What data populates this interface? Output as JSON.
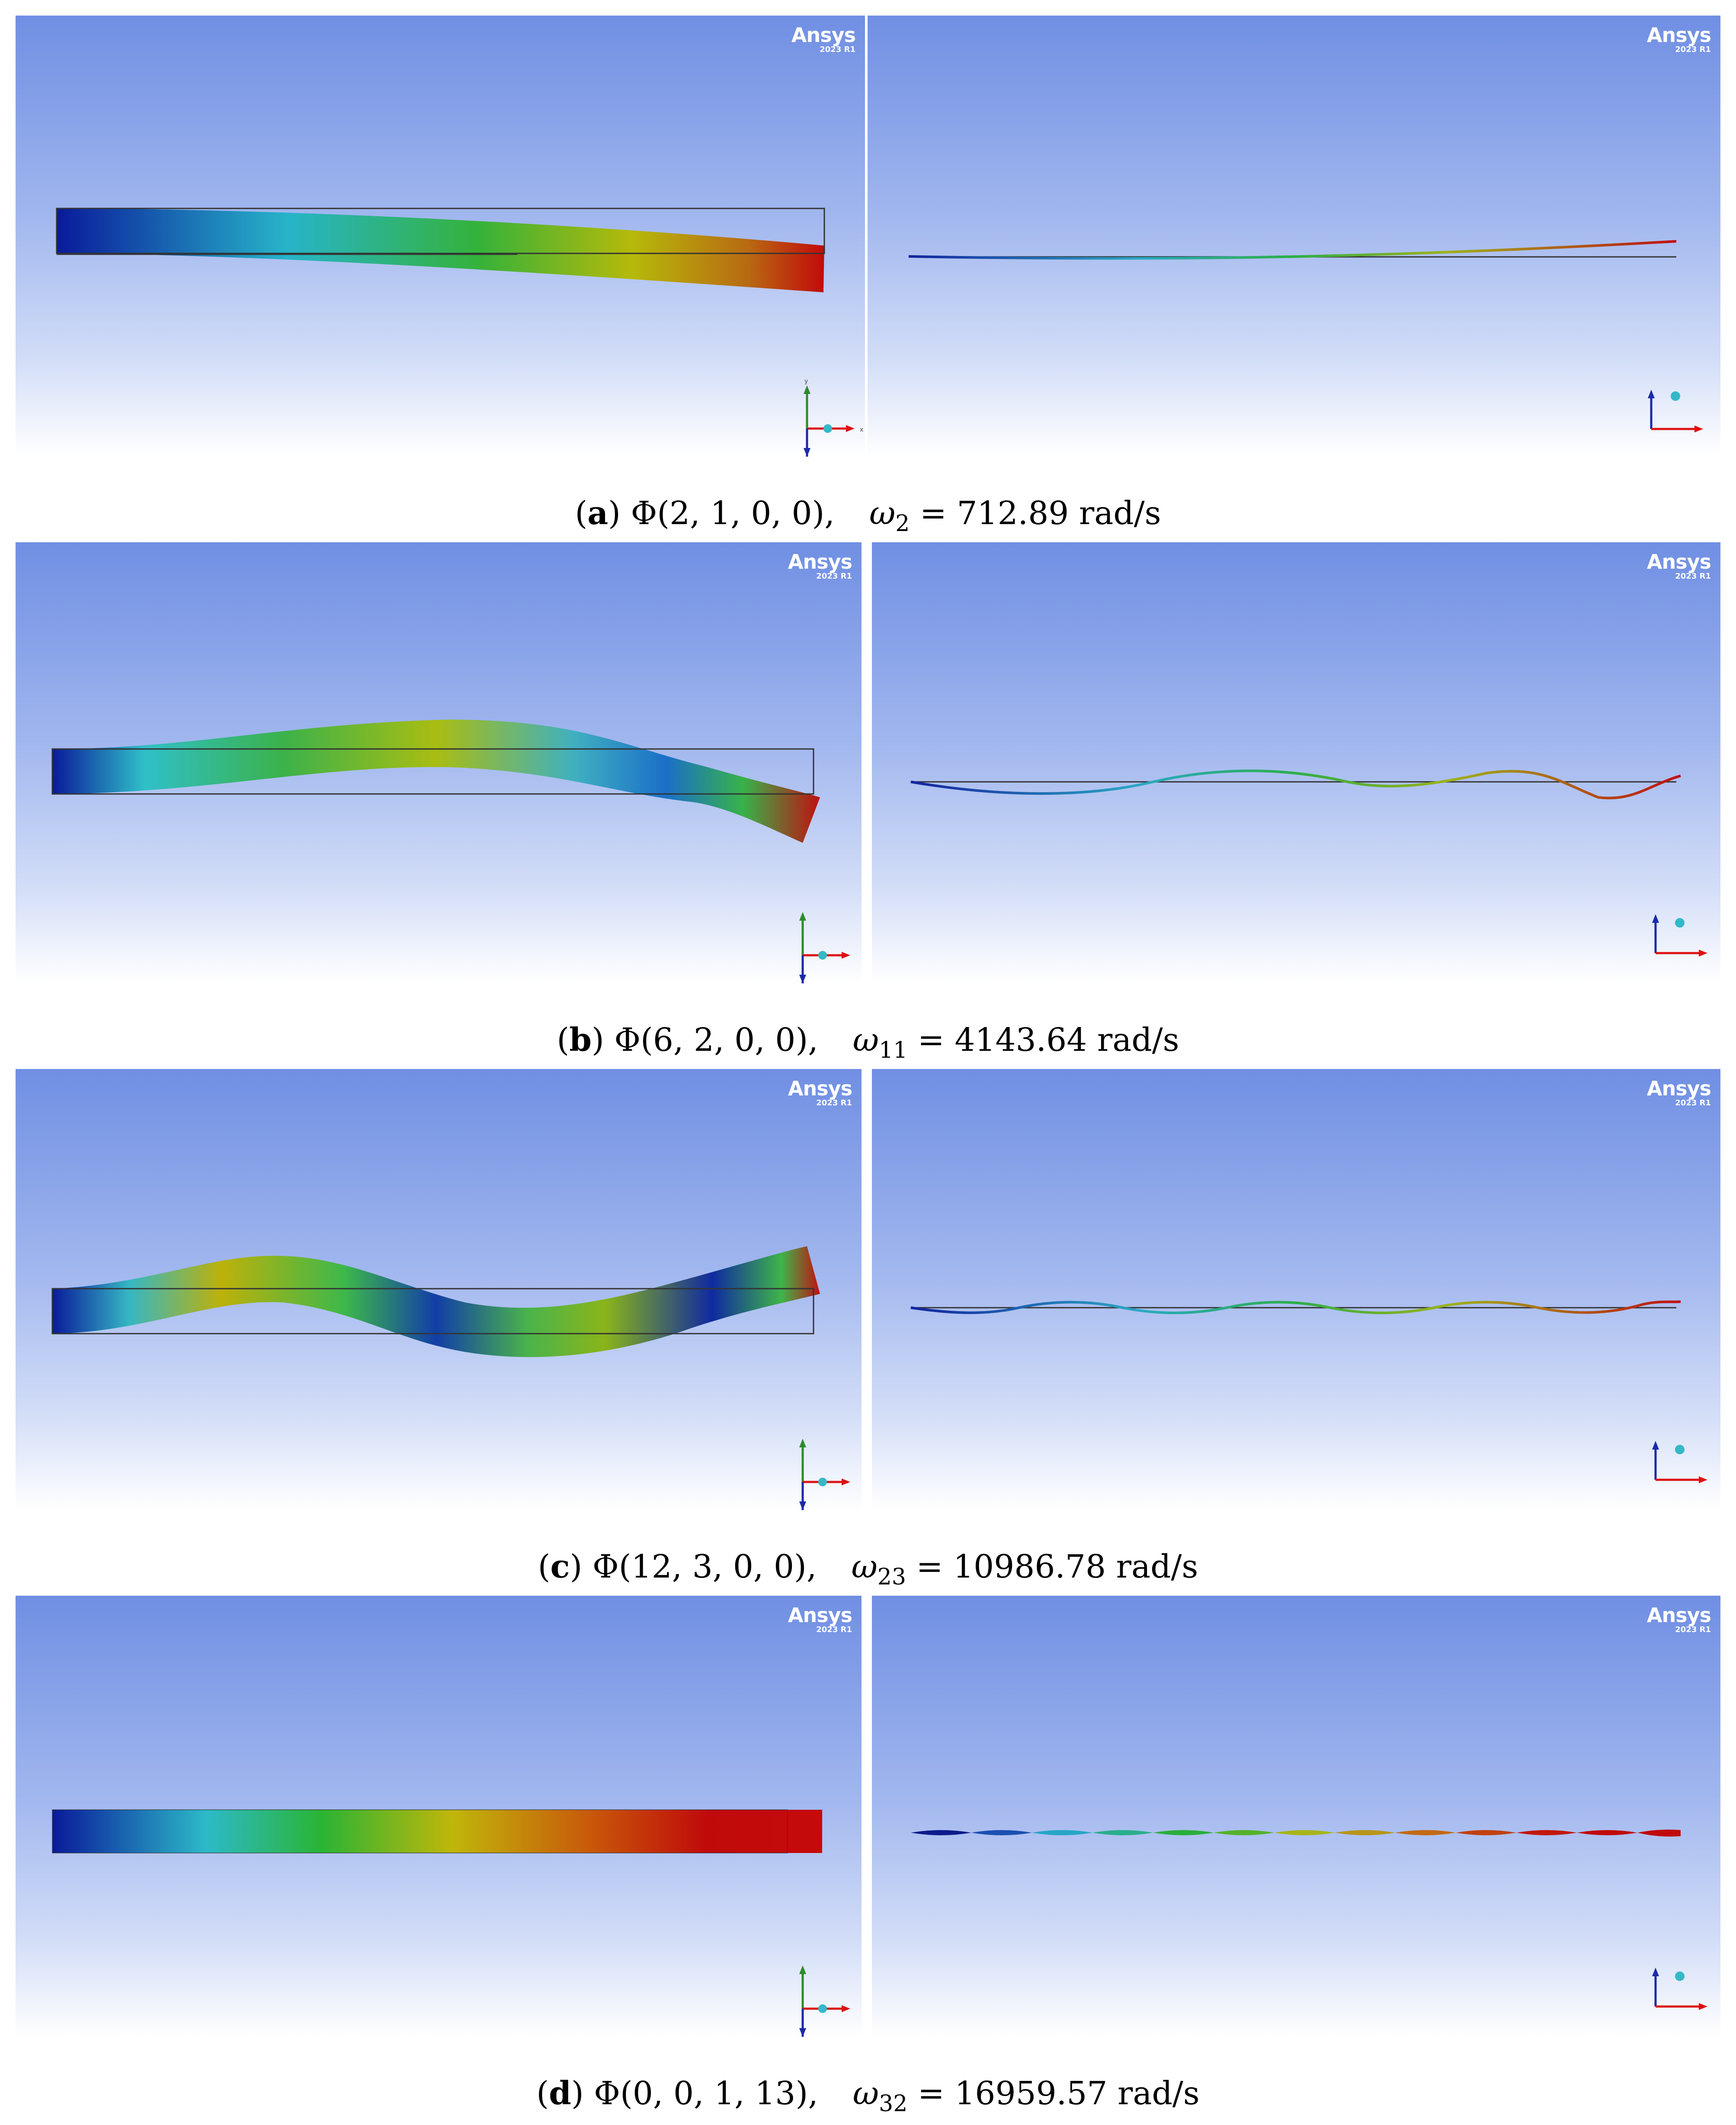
{
  "brand": {
    "name": "Ansys",
    "version": "2023 R1"
  },
  "axes": {
    "x": "x",
    "y": "y",
    "z": "z"
  },
  "captions": [
    {
      "label": "a",
      "phi": "Φ(2, 1, 0, 0),",
      "omega": "ω",
      "sub": "2",
      "value": " = 712.89 rad/s"
    },
    {
      "label": "b",
      "phi": "Φ(6, 2, 0, 0),",
      "omega": "ω",
      "sub": "11",
      "value": " = 4143.64 rad/s"
    },
    {
      "label": "c",
      "phi": "Φ(12, 3, 0, 0),",
      "omega": "ω",
      "sub": "23",
      "value": " = 10986.78 rad/s"
    },
    {
      "label": "d",
      "phi": "Φ(0, 0, 1, 13),",
      "omega": "ω",
      "sub": "32",
      "value": " = 16959.57 rad/s"
    }
  ]
}
